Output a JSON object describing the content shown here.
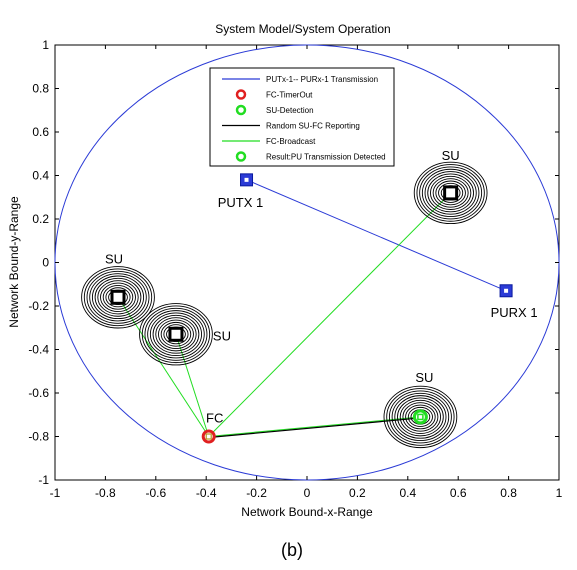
{
  "chart_data": {
    "type": "scatter",
    "title": "System Model/System Operation",
    "xlabel": "Network Bound-x-Range",
    "ylabel": "Network Bound-y-Range",
    "xlim": [
      -1,
      1
    ],
    "ylim": [
      -1,
      1
    ],
    "grid": false,
    "legend_position": "top-center",
    "caption": "(b)",
    "x_ticks": [
      -1,
      -0.8,
      -0.6,
      -0.4,
      -0.2,
      0,
      0.2,
      0.4,
      0.6,
      0.8,
      1
    ],
    "y_ticks": [
      -1,
      -0.8,
      -0.6,
      -0.4,
      -0.2,
      0,
      0.2,
      0.4,
      0.6,
      0.8,
      1
    ],
    "x_tick_labels": [
      "-1",
      "-0.8",
      "-0.6",
      "-0.4",
      "-0.2",
      "0",
      "0.2",
      "0.4",
      "0.6",
      "0.8",
      "1"
    ],
    "y_tick_labels": [
      "-1",
      "-0.8",
      "-0.6",
      "-0.4",
      "-0.2",
      "0",
      "0.2",
      "0.4",
      "0.6",
      "0.8",
      "1"
    ],
    "boundary": {
      "shape": "circle",
      "center": [
        0,
        0
      ],
      "radius": 1,
      "color": "#2b3bd6"
    },
    "colors": {
      "transmission": "#2b3bd6",
      "reporting": "#000000",
      "broadcast": "#22dd22",
      "timeout": "#e02020",
      "detection": "#22dd22",
      "su_rings": "#000000"
    },
    "legend": [
      {
        "label": "PUTx-1-- PURx-1 Transmission",
        "kind": "line",
        "color": "#2b3bd6"
      },
      {
        "label": "FC-TimerOut",
        "kind": "ring",
        "color": "#e02020"
      },
      {
        "label": "SU-Detection",
        "kind": "ring",
        "color": "#22dd22"
      },
      {
        "label": "Random SU-FC Reporting",
        "kind": "line",
        "color": "#000000"
      },
      {
        "label": "FC-Broadcast",
        "kind": "line",
        "color": "#22dd22"
      },
      {
        "label": "Result:PU Transmission Detected",
        "kind": "ring",
        "color": "#22dd22"
      }
    ],
    "primary_users": [
      {
        "label": "PUTX 1",
        "x": -0.24,
        "y": 0.38
      },
      {
        "label": "PURX 1",
        "x": 0.79,
        "y": -0.13
      }
    ],
    "fusion_center": {
      "label": "FC",
      "x": -0.39,
      "y": -0.8
    },
    "secondary_users": [
      {
        "label": "SU",
        "x": -0.75,
        "y": -0.16,
        "detected": false
      },
      {
        "label": "SU",
        "x": -0.52,
        "y": -0.33,
        "detected": false
      },
      {
        "label": "SU",
        "x": 0.57,
        "y": 0.32,
        "detected": false
      },
      {
        "label": "SU",
        "x": 0.45,
        "y": -0.71,
        "detected": true
      }
    ],
    "transmission_link": {
      "from": [
        -0.24,
        0.38
      ],
      "to": [
        0.79,
        -0.13
      ]
    },
    "reporting_links": [
      {
        "from": [
          0.45,
          -0.71
        ],
        "to": [
          -0.39,
          -0.8
        ]
      }
    ],
    "broadcast_links": [
      {
        "from": [
          -0.39,
          -0.8
        ],
        "to": [
          -0.75,
          -0.16
        ]
      },
      {
        "from": [
          -0.39,
          -0.8
        ],
        "to": [
          -0.52,
          -0.33
        ]
      },
      {
        "from": [
          -0.39,
          -0.8
        ],
        "to": [
          0.57,
          0.32
        ]
      },
      {
        "from": [
          -0.39,
          -0.8
        ],
        "to": [
          0.45,
          -0.71
        ]
      }
    ]
  }
}
